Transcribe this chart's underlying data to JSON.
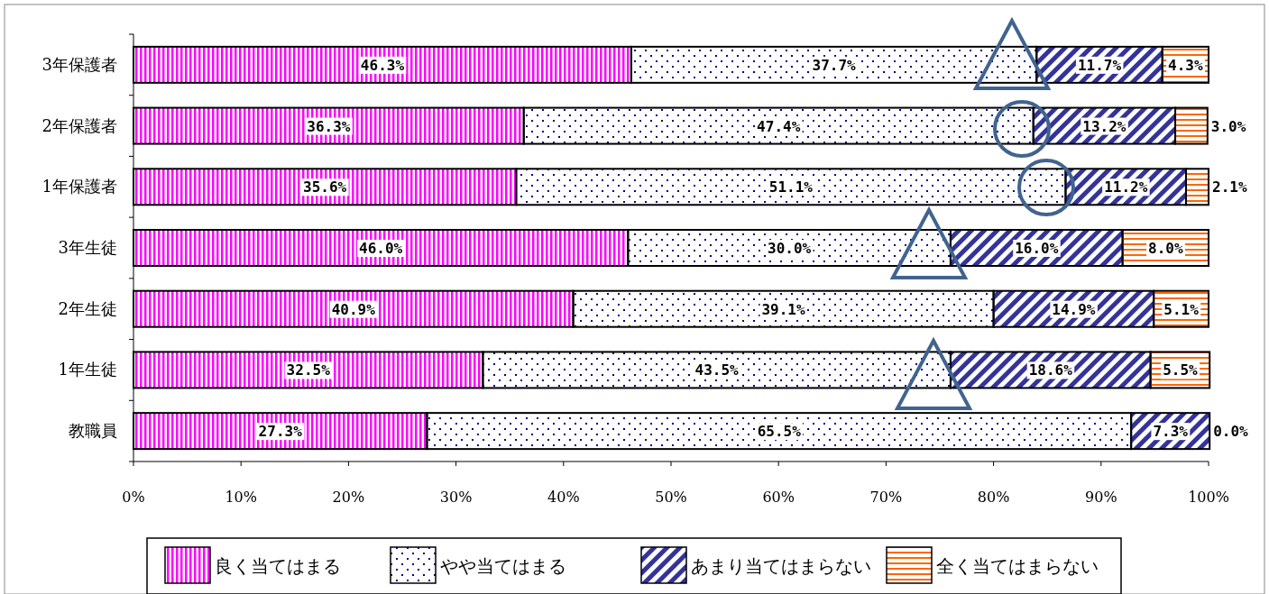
{
  "chart_data": {
    "type": "bar",
    "orientation": "horizontal",
    "stacked": true,
    "categories": [
      "3年保護者",
      "2年保護者",
      "1年保護者",
      "3年生徒",
      "2年生徒",
      "1年生徒",
      "教職員"
    ],
    "series": [
      {
        "name": "良く当てはまる",
        "color": "#ff00ff",
        "values": [
          46.3,
          36.3,
          35.6,
          46.0,
          40.9,
          32.5,
          27.3
        ],
        "value_labels": [
          "46.3%",
          "36.3%",
          "35.6%",
          "46.0%",
          "40.9%",
          "32.5%",
          "27.3%"
        ]
      },
      {
        "name": "やや当てはまる",
        "color": "#000080",
        "values": [
          37.7,
          47.4,
          51.1,
          30.0,
          39.1,
          43.5,
          65.5
        ],
        "value_labels": [
          "37.7%",
          "47.4%",
          "51.1%",
          "30.0%",
          "39.1%",
          "43.5%",
          "65.5%"
        ]
      },
      {
        "name": "あまり当てはまらない",
        "color": "#333399",
        "values": [
          11.7,
          13.2,
          11.2,
          16.0,
          14.9,
          18.6,
          7.3
        ],
        "value_labels": [
          "11.7%",
          "13.2%",
          "11.2%",
          "16.0%",
          "14.9%",
          "18.6%",
          "7.3%"
        ]
      },
      {
        "name": "全く当てはまらない",
        "color": "#ff6600",
        "values": [
          4.3,
          3.0,
          2.1,
          8.0,
          5.1,
          5.5,
          0.0
        ],
        "value_labels": [
          "4.3%",
          "3.0%",
          "2.1%",
          "8.0%",
          "5.1%",
          "5.5%",
          "0.0%"
        ]
      }
    ],
    "xlim": [
      0,
      100
    ],
    "xticks": [
      {
        "value": 0,
        "label": "0%"
      },
      {
        "value": 10,
        "label": "10%"
      },
      {
        "value": 20,
        "label": "20%"
      },
      {
        "value": 30,
        "label": "30%"
      },
      {
        "value": 40,
        "label": "40%"
      },
      {
        "value": 50,
        "label": "50%"
      },
      {
        "value": 60,
        "label": "60%"
      },
      {
        "value": 70,
        "label": "70%"
      },
      {
        "value": 80,
        "label": "80%"
      },
      {
        "value": 90,
        "label": "90%"
      },
      {
        "value": 100,
        "label": "100%"
      }
    ],
    "grid": false,
    "legend": "bottom"
  }
}
